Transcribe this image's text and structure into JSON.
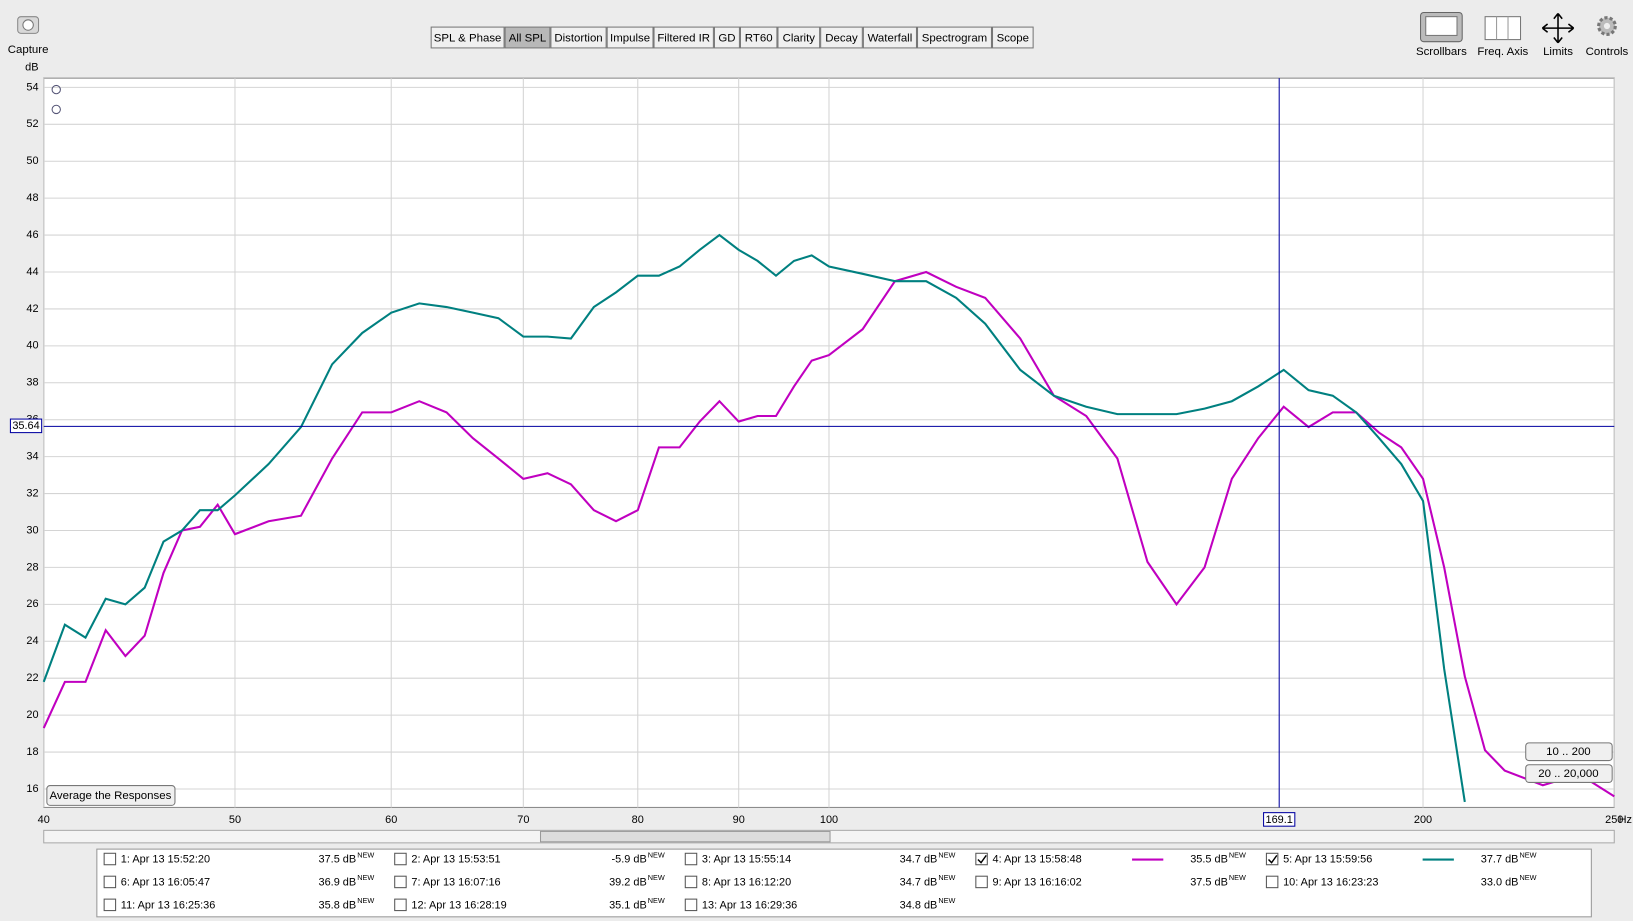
{
  "toolbar": {
    "capture": "Capture",
    "tabs": [
      {
        "label": "SPL & Phase"
      },
      {
        "label": "All SPL",
        "active": true
      },
      {
        "label": "Distortion"
      },
      {
        "label": "Impulse"
      },
      {
        "label": "Filtered IR"
      },
      {
        "label": "GD"
      },
      {
        "label": "RT60"
      },
      {
        "label": "Clarity"
      },
      {
        "label": "Decay"
      },
      {
        "label": "Waterfall"
      },
      {
        "label": "Spectrogram"
      },
      {
        "label": "Scope"
      }
    ],
    "tools": [
      "Scrollbars",
      "Freq. Axis",
      "Limits",
      "Controls"
    ]
  },
  "chart_data": {
    "type": "line",
    "y_unit": "dB",
    "x_unit": "Hz",
    "xscale": "log",
    "grid": true,
    "x": [
      40,
      41,
      42,
      43,
      44,
      45,
      46,
      47,
      48,
      49,
      50,
      52,
      54,
      56,
      58,
      60,
      62,
      64,
      66,
      68,
      70,
      72,
      74,
      76,
      78,
      80,
      82,
      84,
      86,
      88,
      90,
      92,
      94,
      96,
      98,
      100,
      104,
      108,
      112,
      116,
      120,
      125,
      130,
      135,
      140,
      145,
      150,
      155,
      160,
      165,
      170,
      175,
      180,
      185,
      190,
      195,
      200,
      205,
      210,
      215,
      220,
      230,
      240,
      250
    ],
    "xlim": [
      40,
      250
    ],
    "xticks": [
      40,
      50,
      60,
      70,
      80,
      90,
      100,
      200,
      250
    ],
    "ylim": [
      15,
      54.5
    ],
    "yticks": [
      16,
      18,
      20,
      22,
      24,
      26,
      28,
      30,
      32,
      34,
      36,
      38,
      40,
      42,
      44,
      46,
      48,
      50,
      52,
      54
    ],
    "series": [
      {
        "color": "#c000c0",
        "values": [
          19.3,
          21.8,
          21.8,
          24.6,
          23.2,
          24.3,
          27.7,
          30.0,
          30.2,
          31.4,
          29.8,
          30.5,
          30.8,
          33.9,
          36.4,
          36.4,
          37.0,
          36.4,
          35.0,
          33.9,
          32.8,
          33.1,
          32.5,
          31.1,
          30.5,
          31.1,
          34.5,
          34.5,
          35.9,
          37.0,
          35.9,
          36.2,
          36.2,
          37.8,
          39.2,
          39.5,
          40.9,
          43.5,
          44.0,
          43.2,
          42.6,
          40.4,
          37.3,
          36.2,
          33.9,
          28.3,
          26.0,
          28.0,
          32.8,
          35.0,
          36.7,
          35.6,
          36.4,
          36.4,
          35.3,
          34.5,
          32.8,
          28.0,
          22.1,
          18.1,
          17.0,
          16.2,
          16.8,
          15.6
        ]
      },
      {
        "color": "#008080",
        "values": [
          21.8,
          24.9,
          24.2,
          26.3,
          26.0,
          26.9,
          29.4,
          30.0,
          31.1,
          31.1,
          31.9,
          33.6,
          35.6,
          39.0,
          40.7,
          41.8,
          42.3,
          42.1,
          41.8,
          41.5,
          40.5,
          40.5,
          40.4,
          42.1,
          42.9,
          43.8,
          43.8,
          44.3,
          45.2,
          46.0,
          45.2,
          44.6,
          43.8,
          44.6,
          44.9,
          44.3,
          43.9,
          43.5,
          43.5,
          42.6,
          41.2,
          38.7,
          37.3,
          36.7,
          36.3,
          36.3,
          36.3,
          36.6,
          37.0,
          37.8,
          38.7,
          37.6,
          37.3,
          36.4,
          35.0,
          33.6,
          31.6,
          22.5,
          15.3,
          null,
          null,
          null,
          null,
          null
        ]
      }
    ],
    "cursor": {
      "x": 169.1,
      "y": 35.64
    }
  },
  "controls": {
    "average": "Average the Responses",
    "zoom_buttons": [
      "10 .. 200",
      "20 .. 20,000"
    ]
  },
  "measurements": [
    {
      "label": "1: Apr 13 15:52:20",
      "level": "37.5 dB",
      "badge": "NEW",
      "color": "#c00000",
      "checked": false
    },
    {
      "label": "2: Apr 13 15:53:51",
      "level": "-5.9 dB",
      "badge": "NEW",
      "color": "#008000",
      "checked": false
    },
    {
      "label": "3: Apr 13 15:55:14",
      "level": "34.7 dB",
      "badge": "NEW",
      "color": "#4040c0",
      "checked": false
    },
    {
      "label": "4: Apr 13 15:58:48",
      "level": "35.5 dB",
      "badge": "NEW",
      "color": "#a000a0",
      "checked": true
    },
    {
      "label": "5: Apr 13 15:59:56",
      "level": "37.7 dB",
      "badge": "NEW",
      "color": "#007878",
      "checked": true
    },
    {
      "label": "6: Apr 13 16:05:47",
      "level": "36.9 dB",
      "badge": "NEW",
      "color": "#c08000",
      "checked": false
    },
    {
      "label": "7: Apr 13 16:07:16",
      "level": "39.2 dB",
      "badge": "NEW",
      "color": "#00a000",
      "checked": false
    },
    {
      "label": "8: Apr 13 16:12:20",
      "level": "34.7 dB",
      "badge": "NEW",
      "color": "#6040c0",
      "checked": false
    },
    {
      "label": "9: Apr 13 16:16:02",
      "level": "37.5 dB",
      "badge": "NEW",
      "color": "#a000a0",
      "checked": false
    },
    {
      "label": "10: Apr 13 16:23:23",
      "level": "33.0 dB",
      "badge": "NEW",
      "color": "#2080a0",
      "checked": false
    },
    {
      "label": "11: Apr 13 16:25:36",
      "level": "35.8 dB",
      "badge": "NEW",
      "color": "#c00000",
      "checked": false
    },
    {
      "label": "12: Apr 13 16:28:19",
      "level": "35.1 dB",
      "badge": "NEW",
      "color": "#008000",
      "checked": false
    },
    {
      "label": "13: Apr 13 16:29:36",
      "level": "34.8 dB",
      "badge": "NEW",
      "color": "#6000c0",
      "checked": false
    }
  ]
}
